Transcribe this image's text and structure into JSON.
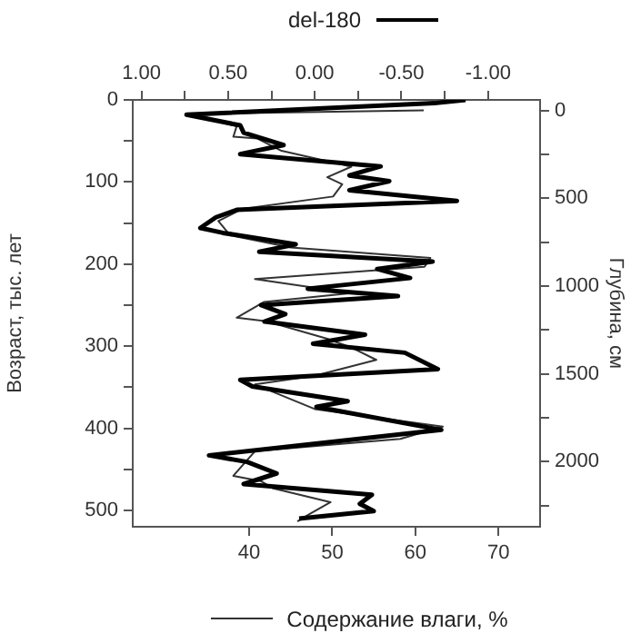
{
  "chart_data": {
    "type": "line",
    "x2label": "del-180",
    "xlabel": "Содержание влаги, %",
    "ylabel": "Возраст, тыс. лет",
    "y2label": "Глубина, см",
    "xlim": [
      26,
      75
    ],
    "xticks": [
      40,
      50,
      60,
      70
    ],
    "x2lim": [
      1.05,
      -1.3
    ],
    "x2ticks": [
      {
        "value": 1,
        "label": "1.00"
      },
      {
        "value": 0.75,
        "label": null
      },
      {
        "value": 0.5,
        "label": "0.50"
      },
      {
        "value": 0.25,
        "label": null
      },
      {
        "value": 0,
        "label": "0.00"
      },
      {
        "value": -0.25,
        "label": null
      },
      {
        "value": -0.5,
        "label": "-0.50"
      },
      {
        "value": -0.75,
        "label": null
      },
      {
        "value": -1,
        "label": "-1.00"
      }
    ],
    "ylim": [
      520,
      0
    ],
    "yticks": [
      0,
      {
        "value": 50,
        "label": null
      },
      100,
      {
        "value": 150,
        "label": null
      },
      200,
      {
        "value": 250,
        "label": null
      },
      300,
      {
        "value": 350,
        "label": null
      },
      400,
      {
        "value": 450,
        "label": null
      },
      500
    ],
    "y2lim": [
      2370,
      -60
    ],
    "y2ticks": [
      0,
      {
        "value": 250,
        "label": null
      },
      500,
      {
        "value": 750,
        "label": null
      },
      1000,
      {
        "value": 1250,
        "label": null
      },
      1500,
      {
        "value": 1750,
        "label": null
      },
      2000,
      {
        "value": 2250,
        "label": null
      }
    ],
    "grid": false,
    "marker": "none",
    "line_style": "solid",
    "series": [
      {
        "color": "#000000",
        "axis": "x2",
        "x": [
          -0.87,
          -0.69,
          0.74,
          0.43,
          0.41,
          0.18,
          0.43,
          -0.38,
          -0.2,
          -0.43,
          -0.2,
          -0.82,
          0.45,
          0.57,
          0.66,
          0.53,
          0.11,
          0.32,
          -0.68,
          -0.36,
          -0.55,
          0.04,
          -0.48,
          0.31,
          0.17,
          0.29,
          -0.29,
          0.01,
          -0.52,
          -0.71,
          0.43,
          0.36,
          -0.19,
          -0.01,
          -0.73,
          0.61,
          0.39,
          0.22,
          0.41,
          -0.33,
          -0.26,
          -0.34,
          0.09
        ],
        "values": [
          0,
          4,
          18,
          31,
          40,
          55,
          66,
          81,
          92,
          99,
          110,
          123,
          134,
          143,
          156,
          162,
          176,
          185,
          197,
          206,
          217,
          230,
          239,
          250,
          261,
          270,
          286,
          297,
          308,
          328,
          341,
          349,
          367,
          374,
          402,
          433,
          441,
          455,
          468,
          481,
          492,
          501,
          510
        ]
      },
      {
        "color": "#333333",
        "axis": "y2",
        "x": [
          61,
          32.6,
          38.5,
          38.1,
          41,
          43.9,
          52.3,
          49.4,
          51.2,
          50.1,
          39.2,
          36.3,
          37.7,
          45,
          61.8,
          61.1,
          40.7,
          52.3,
          41.8,
          38.5,
          42.1,
          49.4,
          52.3,
          55.3,
          47.9,
          40.7,
          47.9,
          63.3,
          58.2,
          40.7,
          38.1,
          41.4,
          42.8,
          49.8,
          47.2,
          45.8
        ],
        "values": [
          0,
          20,
          90,
          150,
          160,
          230,
          320,
          380,
          420,
          490,
          560,
          630,
          710,
          780,
          840,
          890,
          960,
          1040,
          1090,
          1180,
          1200,
          1300,
          1350,
          1420,
          1510,
          1560,
          1700,
          1800,
          1870,
          1940,
          2080,
          2110,
          2150,
          2230,
          2300,
          2340
        ]
      }
    ]
  }
}
